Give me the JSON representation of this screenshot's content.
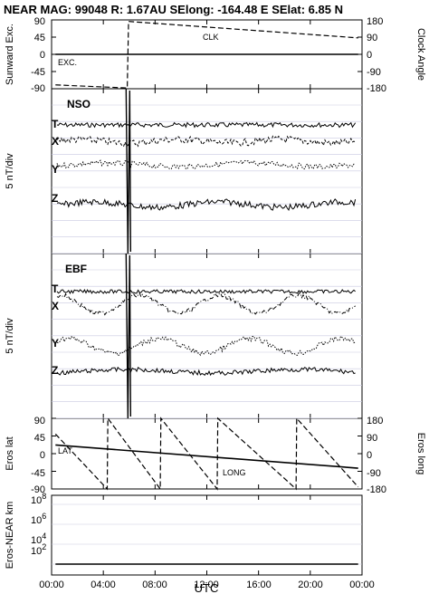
{
  "header": {
    "title": "NEAR MAG: 99048  R: 1.67AU  SElong: -164.48 E  SElat:    6.85 N"
  },
  "x_axis": {
    "ticks": [
      "00:00",
      "04:00",
      "08:00",
      "12:00",
      "16:00",
      "20:00",
      "00:00"
    ],
    "label": "UTC"
  },
  "chart_data": [
    {
      "type": "line",
      "id": "sunward-clock",
      "ylabel": "Sunward Exc.",
      "ylabel_right": "Clock Angle",
      "yticks_left": [
        "90",
        "45",
        "0",
        "-45",
        "-90"
      ],
      "yticks_right": [
        "180",
        "90",
        "0",
        "-90",
        "-180"
      ],
      "ylim": [
        -90,
        90
      ],
      "ylim_right": [
        -180,
        180
      ],
      "xlim_hours": [
        0,
        24
      ],
      "series": [
        {
          "name": "EXC.",
          "x": [
            0.3,
            23.7
          ],
          "y": [
            0,
            0
          ]
        },
        {
          "name": "CLK",
          "x": [
            0.3,
            5.85,
            5.95,
            23.7
          ],
          "y": [
            -160,
            -176,
            172,
            86
          ]
        }
      ]
    },
    {
      "type": "line",
      "id": "nso",
      "title": "NSO",
      "ylabel": "5 nT/div",
      "series": [
        {
          "name": "T"
        },
        {
          "name": "X"
        },
        {
          "name": "Y"
        },
        {
          "name": "Z"
        }
      ]
    },
    {
      "type": "line",
      "id": "ebf",
      "title": "EBF",
      "ylabel": "5 nT/div",
      "series": [
        {
          "name": "T"
        },
        {
          "name": "X"
        },
        {
          "name": "Y"
        },
        {
          "name": "Z"
        }
      ]
    },
    {
      "type": "line",
      "id": "eros-lat-long",
      "ylabel": "Eros lat",
      "ylabel_right": "Eros long",
      "yticks_left": [
        "90",
        "45",
        "0",
        "-45",
        "-90"
      ],
      "yticks_right": [
        "180",
        "90",
        "0",
        "-90",
        "-180"
      ],
      "ylim": [
        -90,
        90
      ],
      "ylim_right": [
        -180,
        180
      ],
      "xlim_hours": [
        0,
        24
      ],
      "series": [
        {
          "name": "LAT",
          "x": [
            0.3,
            23.7
          ],
          "y": [
            22,
            -37
          ]
        },
        {
          "name": "LONG",
          "x": [
            0.3,
            4.3,
            4.35,
            8.4,
            8.45,
            12.8,
            12.85,
            18.9,
            18.95,
            23.7
          ],
          "y": [
            100,
            -180,
            180,
            -180,
            180,
            -180,
            180,
            -180,
            180,
            -170
          ]
        }
      ]
    },
    {
      "type": "line",
      "id": "eros-near-distance",
      "ylabel": "Eros-NEAR km",
      "yscale": "log",
      "yticks": [
        "10",
        "10",
        "10",
        "10"
      ],
      "ytick_exponents": [
        "8",
        "6",
        "4",
        "2"
      ],
      "ylim": [
        1,
        100000000
      ],
      "xlim_hours": [
        0,
        24
      ],
      "series": [
        {
          "x": [
            0.3,
            23.7
          ],
          "y": [
            100,
            100
          ]
        }
      ]
    }
  ]
}
